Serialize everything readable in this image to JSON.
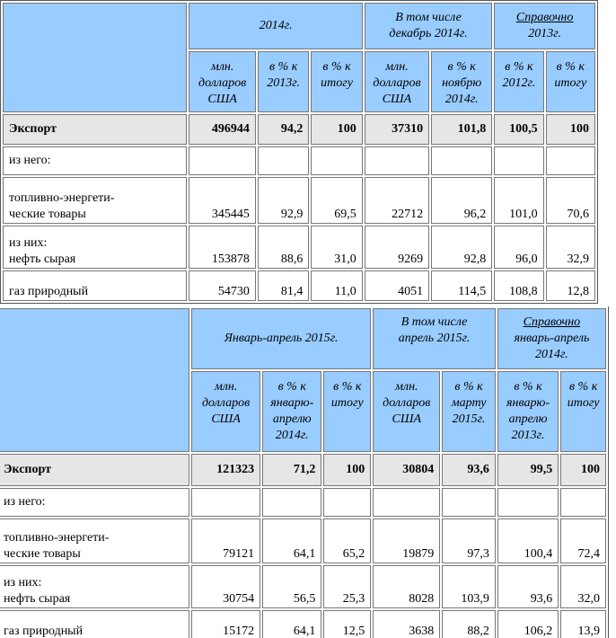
{
  "table1": {
    "h_period": "2014г.",
    "h_incl": [
      "В том числе",
      "декабрь 2014г."
    ],
    "h_ref": [
      "Справочно",
      "2013г."
    ],
    "sub": [
      [
        "млн.",
        "долларов",
        "США"
      ],
      [
        "в % к",
        "2013г."
      ],
      [
        "в % к",
        "итогу"
      ],
      [
        "млн.",
        "долларов",
        "США"
      ],
      [
        "в % к",
        "ноябрю",
        "2014г."
      ],
      [
        "в % к",
        "2012г."
      ],
      [
        "в % к",
        "итогу"
      ]
    ],
    "rows": [
      {
        "label": [
          "Экспорт"
        ],
        "values": [
          "496944",
          "94,2",
          "100",
          "37310",
          "101,8",
          "100,5",
          "100"
        ]
      },
      {
        "label": [
          "из него:"
        ],
        "values": [
          "",
          "",
          "",
          "",
          "",
          "",
          ""
        ]
      },
      {
        "label": [
          "топливно-энергети-",
          "ческие товары"
        ],
        "values": [
          "345445",
          "92,9",
          "69,5",
          "22712",
          "96,2",
          "101,0",
          "70,6"
        ]
      },
      {
        "label": [
          "из них:",
          "нефть сырая"
        ],
        "values": [
          "153878",
          "88,6",
          "31,0",
          "9269",
          "92,8",
          "96,0",
          "32,9"
        ]
      },
      {
        "label": [
          "газ природный"
        ],
        "values": [
          "54730",
          "81,4",
          "11,0",
          "4051",
          "114,5",
          "108,8",
          "12,8"
        ]
      }
    ]
  },
  "table2": {
    "h_period": "Январь-апрель 2015г.",
    "h_incl": [
      "В том числе",
      "апрель 2015г."
    ],
    "h_ref": [
      "Справочно",
      "январь-апрель",
      "2014г."
    ],
    "sub": [
      [
        "млн.",
        "долларов",
        "США"
      ],
      [
        "в % к",
        "январю-",
        "апрелю",
        "2014г."
      ],
      [
        "в % к",
        "итогу"
      ],
      [
        "млн.",
        "долларов",
        "США"
      ],
      [
        "в % к",
        "марту",
        "2015г."
      ],
      [
        "в % к",
        "январю-",
        "апрелю",
        "2013г."
      ],
      [
        "в % к",
        "итогу"
      ]
    ],
    "rows": [
      {
        "label": [
          "Экспорт"
        ],
        "values": [
          "121323",
          "71,2",
          "100",
          "30804",
          "93,6",
          "99,5",
          "100"
        ]
      },
      {
        "label": [
          "из него:"
        ],
        "values": [
          "",
          "",
          "",
          "",
          "",
          "",
          ""
        ]
      },
      {
        "label": [
          "топливно-энергети-",
          "ческие товары"
        ],
        "values": [
          "79121",
          "64,1",
          "65,2",
          "19879",
          "97,3",
          "100,4",
          "72,4"
        ]
      },
      {
        "label": [
          "из них:",
          "нефть сырая"
        ],
        "values": [
          "30754",
          "56,5",
          "25,3",
          "8028",
          "103,9",
          "93,6",
          "32,0"
        ]
      },
      {
        "label": [
          "газ природный"
        ],
        "values": [
          "15172",
          "64,1",
          "12,5",
          "3638",
          "88,2",
          "106,2",
          "13,9"
        ]
      }
    ]
  },
  "highlight_colors": {
    "red": "#e0001b",
    "blue": "#1f9ad8",
    "header": "#99ccff"
  }
}
